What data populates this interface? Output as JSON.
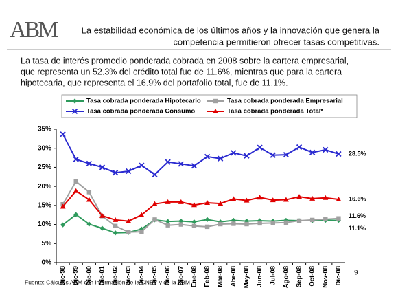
{
  "logo": "ABM",
  "headline": [
    "La estabilidad económica de los últimos años y la innovación que genera la",
    "competencia permitieron ofrecer tasas competitivas."
  ],
  "body": [
    "La tasa de interés promedio ponderada cobrada en 2008 sobre la cartera empresarial,",
    "que representa un 52.3% del crédito total fue de 11.6%, mientras que para la cartera",
    "hipotecaria, que representa el 16.9% del portafolio total, fue de 11.1%."
  ],
  "source": "Fuente: Cálculos ABM con información de la CNBV y de la ABM",
  "page_number": 9,
  "chart_data": {
    "type": "line",
    "categories": [
      "Dic-98",
      "Dic-99",
      "Dic-00",
      "Dic-01",
      "Dic-02",
      "Dic-03",
      "Dic-04",
      "Dic-05",
      "Dic-06",
      "Dic-07",
      "Ene-08",
      "Feb-08",
      "Mar-08",
      "Abr-08",
      "May-08",
      "Jun-08",
      "Jul-08",
      "Ago-08",
      "Sep-08",
      "Oct-08",
      "Nov-08",
      "Dic-08"
    ],
    "series": [
      {
        "name": "Tasa cobrada ponderada Hipotecario",
        "color": "#2e9a5c",
        "marker": "diamond",
        "values": [
          9.9,
          12.6,
          10.1,
          9.0,
          7.8,
          7.9,
          8.8,
          11.2,
          10.8,
          10.9,
          10.7,
          11.3,
          10.7,
          11.1,
          10.9,
          11.0,
          10.9,
          11.1,
          11.0,
          11.0,
          11.1,
          11.1
        ],
        "value_labels": [
          null,
          null,
          null,
          null,
          null,
          null,
          null,
          null,
          null,
          null,
          null,
          null,
          null,
          null,
          null,
          null,
          null,
          null,
          null,
          null,
          null,
          "11.1%"
        ]
      },
      {
        "name": "Tasa cobrada ponderada Empresarial",
        "color": "#a0a0a0",
        "marker": "square",
        "values": [
          15.3,
          21.3,
          18.5,
          12.2,
          9.6,
          8.0,
          8.1,
          11.3,
          9.8,
          10.0,
          9.6,
          9.4,
          10.1,
          10.2,
          10.1,
          10.3,
          10.4,
          10.5,
          11.0,
          11.2,
          11.4,
          11.6
        ],
        "value_labels": [
          null,
          null,
          null,
          null,
          null,
          null,
          null,
          null,
          null,
          null,
          null,
          null,
          null,
          null,
          null,
          null,
          null,
          null,
          null,
          null,
          null,
          "11.6%"
        ]
      },
      {
        "name": "Tasa cobrada ponderada Consumo",
        "color": "#2a2ad0",
        "marker": "x",
        "values": [
          33.7,
          27.1,
          26.0,
          25.0,
          23.6,
          24.0,
          25.5,
          23.1,
          26.4,
          25.9,
          25.4,
          27.8,
          27.3,
          28.8,
          28.0,
          30.2,
          28.2,
          28.3,
          30.3,
          28.9,
          29.6,
          28.5
        ],
        "value_labels": [
          null,
          null,
          null,
          null,
          null,
          null,
          null,
          null,
          null,
          null,
          null,
          null,
          null,
          null,
          null,
          null,
          null,
          null,
          null,
          null,
          null,
          "28.5%"
        ]
      },
      {
        "name": "Tasa cobrada ponderada Total*",
        "color": "#e00000",
        "marker": "triangle",
        "values": [
          14.7,
          18.8,
          16.5,
          12.3,
          11.2,
          10.9,
          12.5,
          15.4,
          15.9,
          15.9,
          15.1,
          15.7,
          15.5,
          16.7,
          16.3,
          17.1,
          16.4,
          16.5,
          17.3,
          16.8,
          17.0,
          16.6
        ],
        "value_labels": [
          null,
          null,
          null,
          null,
          null,
          null,
          null,
          null,
          null,
          null,
          null,
          null,
          null,
          null,
          null,
          null,
          null,
          null,
          null,
          null,
          null,
          "16.6%"
        ]
      }
    ],
    "ylim": [
      0,
      35
    ],
    "yticks": [
      {
        "value": 0,
        "label": "0%"
      },
      {
        "value": 5,
        "label": "5%"
      },
      {
        "value": 10,
        "label": "10%"
      },
      {
        "value": 15,
        "label": "15%"
      },
      {
        "value": 20,
        "label": "20%"
      },
      {
        "value": 25,
        "label": "25%"
      },
      {
        "value": 30,
        "label": "30%"
      },
      {
        "value": 35,
        "label": "35%"
      }
    ],
    "grid": false,
    "legend": "top"
  }
}
